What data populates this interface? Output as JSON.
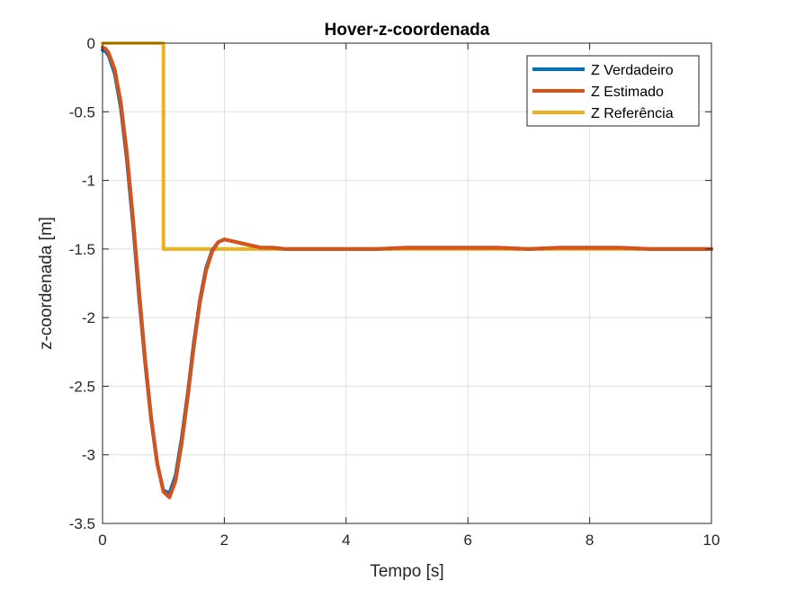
{
  "chart_data": {
    "type": "line",
    "title": "Hover-z-coordenada",
    "xlabel": "Tempo [s]",
    "ylabel": "z-coordenada [m]",
    "xlim": [
      0,
      10
    ],
    "ylim": [
      -3.5,
      0
    ],
    "xticks": [
      0,
      2,
      4,
      6,
      8,
      10
    ],
    "xtick_labels": [
      "0",
      "2",
      "4",
      "6",
      "8",
      "10"
    ],
    "yticks": [
      0,
      -0.5,
      -1,
      -1.5,
      -2,
      -2.5,
      -3,
      -3.5
    ],
    "ytick_labels": [
      "0",
      "-0.5",
      "-1",
      "-1.5",
      "-2",
      "-2.5",
      "-3",
      "-3.5"
    ],
    "grid": true,
    "legend_position": "top-right",
    "series": [
      {
        "name": "Z Verdadeiro",
        "color": "#0072BD",
        "x": [
          0,
          0.05,
          0.1,
          0.2,
          0.3,
          0.4,
          0.5,
          0.6,
          0.7,
          0.8,
          0.9,
          1.0,
          1.1,
          1.2,
          1.3,
          1.4,
          1.5,
          1.6,
          1.7,
          1.8,
          1.9,
          2.0,
          2.1,
          2.2,
          2.3,
          2.4,
          2.5,
          2.6,
          2.8,
          3.0,
          3.3,
          3.6,
          4.0,
          4.5,
          5.0,
          5.5,
          6.0,
          6.5,
          7.0,
          7.5,
          8.0,
          8.5,
          9.0,
          9.5,
          10.0
        ],
        "y": [
          -0.05,
          -0.06,
          -0.09,
          -0.22,
          -0.47,
          -0.85,
          -1.32,
          -1.85,
          -2.33,
          -2.75,
          -3.07,
          -3.26,
          -3.28,
          -3.15,
          -2.88,
          -2.55,
          -2.18,
          -1.87,
          -1.64,
          -1.51,
          -1.45,
          -1.43,
          -1.44,
          -1.45,
          -1.46,
          -1.47,
          -1.48,
          -1.49,
          -1.49,
          -1.5,
          -1.5,
          -1.5,
          -1.5,
          -1.5,
          -1.49,
          -1.49,
          -1.49,
          -1.49,
          -1.5,
          -1.49,
          -1.49,
          -1.49,
          -1.5,
          -1.5,
          -1.5
        ]
      },
      {
        "name": "Z Estimado",
        "color": "#D95319",
        "x": [
          0,
          0.05,
          0.1,
          0.2,
          0.3,
          0.4,
          0.5,
          0.6,
          0.7,
          0.8,
          0.9,
          1.0,
          1.1,
          1.2,
          1.3,
          1.4,
          1.5,
          1.6,
          1.7,
          1.8,
          1.9,
          2.0,
          2.1,
          2.2,
          2.3,
          2.4,
          2.5,
          2.6,
          2.8,
          3.0,
          3.3,
          3.6,
          4.0,
          4.5,
          5.0,
          5.5,
          6.0,
          6.5,
          7.0,
          7.5,
          8.0,
          8.5,
          9.0,
          9.5,
          10.0
        ],
        "y": [
          -0.03,
          -0.04,
          -0.07,
          -0.19,
          -0.43,
          -0.8,
          -1.27,
          -1.8,
          -2.3,
          -2.73,
          -3.06,
          -3.27,
          -3.31,
          -3.19,
          -2.92,
          -2.58,
          -2.21,
          -1.89,
          -1.66,
          -1.52,
          -1.45,
          -1.43,
          -1.44,
          -1.45,
          -1.46,
          -1.47,
          -1.48,
          -1.49,
          -1.49,
          -1.5,
          -1.5,
          -1.5,
          -1.5,
          -1.5,
          -1.49,
          -1.49,
          -1.49,
          -1.49,
          -1.5,
          -1.49,
          -1.49,
          -1.49,
          -1.5,
          -1.5,
          -1.5
        ]
      },
      {
        "name": "Z Referência",
        "color": "#EDB120",
        "x": [
          0,
          1.0,
          1.0,
          10.0
        ],
        "y": [
          0,
          0,
          -1.5,
          -1.5
        ]
      }
    ]
  }
}
